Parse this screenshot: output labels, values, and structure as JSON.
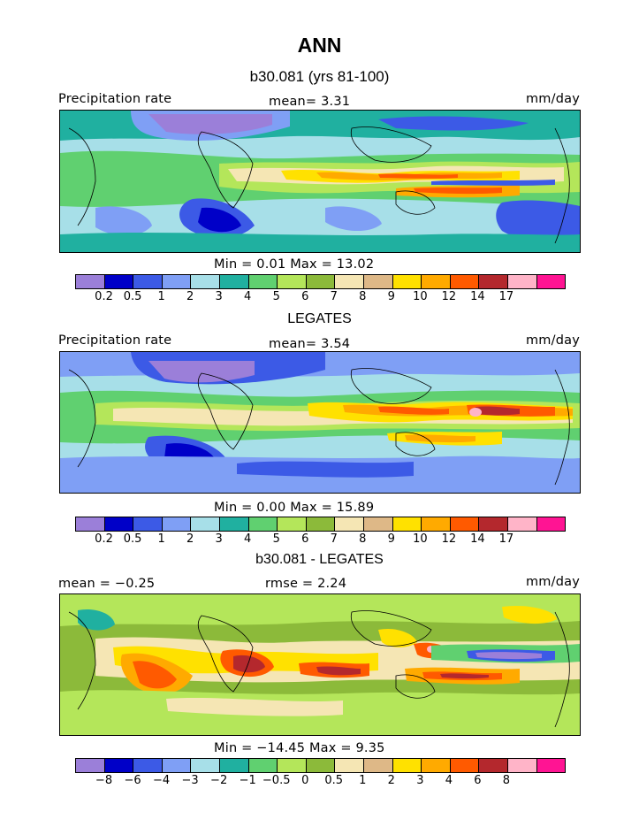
{
  "figure": {
    "title": "ANN"
  },
  "chart_data": [
    {
      "type": "heatmap",
      "subtitle": "b30.081 (yrs 81-100)",
      "field_label": "Precipitation rate",
      "units": "mm/day",
      "stat_left": "",
      "stat_center": "mean=   3.31",
      "minmax": "Min =    0.01  Max =   13.02",
      "colors": [
        "#9b7fd9",
        "#0000c8",
        "#3c5ae6",
        "#7f9ff5",
        "#a7dfe8",
        "#20b0a0",
        "#60d070",
        "#b4e65a",
        "#8cba3a",
        "#f5e6b4",
        "#deb887",
        "#ffe100",
        "#ffaa00",
        "#ff5a00",
        "#b4282d",
        "#ffb4c8",
        "#ff1493"
      ],
      "ticks": [
        "0.2",
        "0.5",
        "1",
        "2",
        "3",
        "4",
        "5",
        "6",
        "7",
        "8",
        "9",
        "10",
        "12",
        "14",
        "17"
      ]
    },
    {
      "type": "heatmap",
      "subtitle": "LEGATES",
      "field_label": "Precipitation rate",
      "units": "mm/day",
      "stat_left": "",
      "stat_center": "mean=   3.54",
      "minmax": "Min =    0.00  Max =   15.89",
      "colors": [
        "#9b7fd9",
        "#0000c8",
        "#3c5ae6",
        "#7f9ff5",
        "#a7dfe8",
        "#20b0a0",
        "#60d070",
        "#b4e65a",
        "#8cba3a",
        "#f5e6b4",
        "#deb887",
        "#ffe100",
        "#ffaa00",
        "#ff5a00",
        "#b4282d",
        "#ffb4c8",
        "#ff1493"
      ],
      "ticks": [
        "0.2",
        "0.5",
        "1",
        "2",
        "3",
        "4",
        "5",
        "6",
        "7",
        "8",
        "9",
        "10",
        "12",
        "14",
        "17"
      ]
    },
    {
      "type": "heatmap",
      "subtitle": "b30.081 - LEGATES",
      "field_label": "",
      "units": "mm/day",
      "stat_left": "mean =  −0.25",
      "stat_center": "rmse =    2.24",
      "minmax": "Min = −14.45  Max =    9.35",
      "colors": [
        "#9b7fd9",
        "#0000c8",
        "#3c5ae6",
        "#7f9ff5",
        "#a7dfe8",
        "#20b0a0",
        "#60d070",
        "#b4e65a",
        "#8cba3a",
        "#f5e6b4",
        "#deb887",
        "#ffe100",
        "#ffaa00",
        "#ff5a00",
        "#b4282d",
        "#ffb4c8",
        "#ff1493"
      ],
      "ticks": [
        "−8",
        "−6",
        "−4",
        "−3",
        "−2",
        "−1",
        "−0.5",
        "0",
        "0.5",
        "1",
        "2",
        "3",
        "4",
        "6",
        "8"
      ]
    }
  ]
}
